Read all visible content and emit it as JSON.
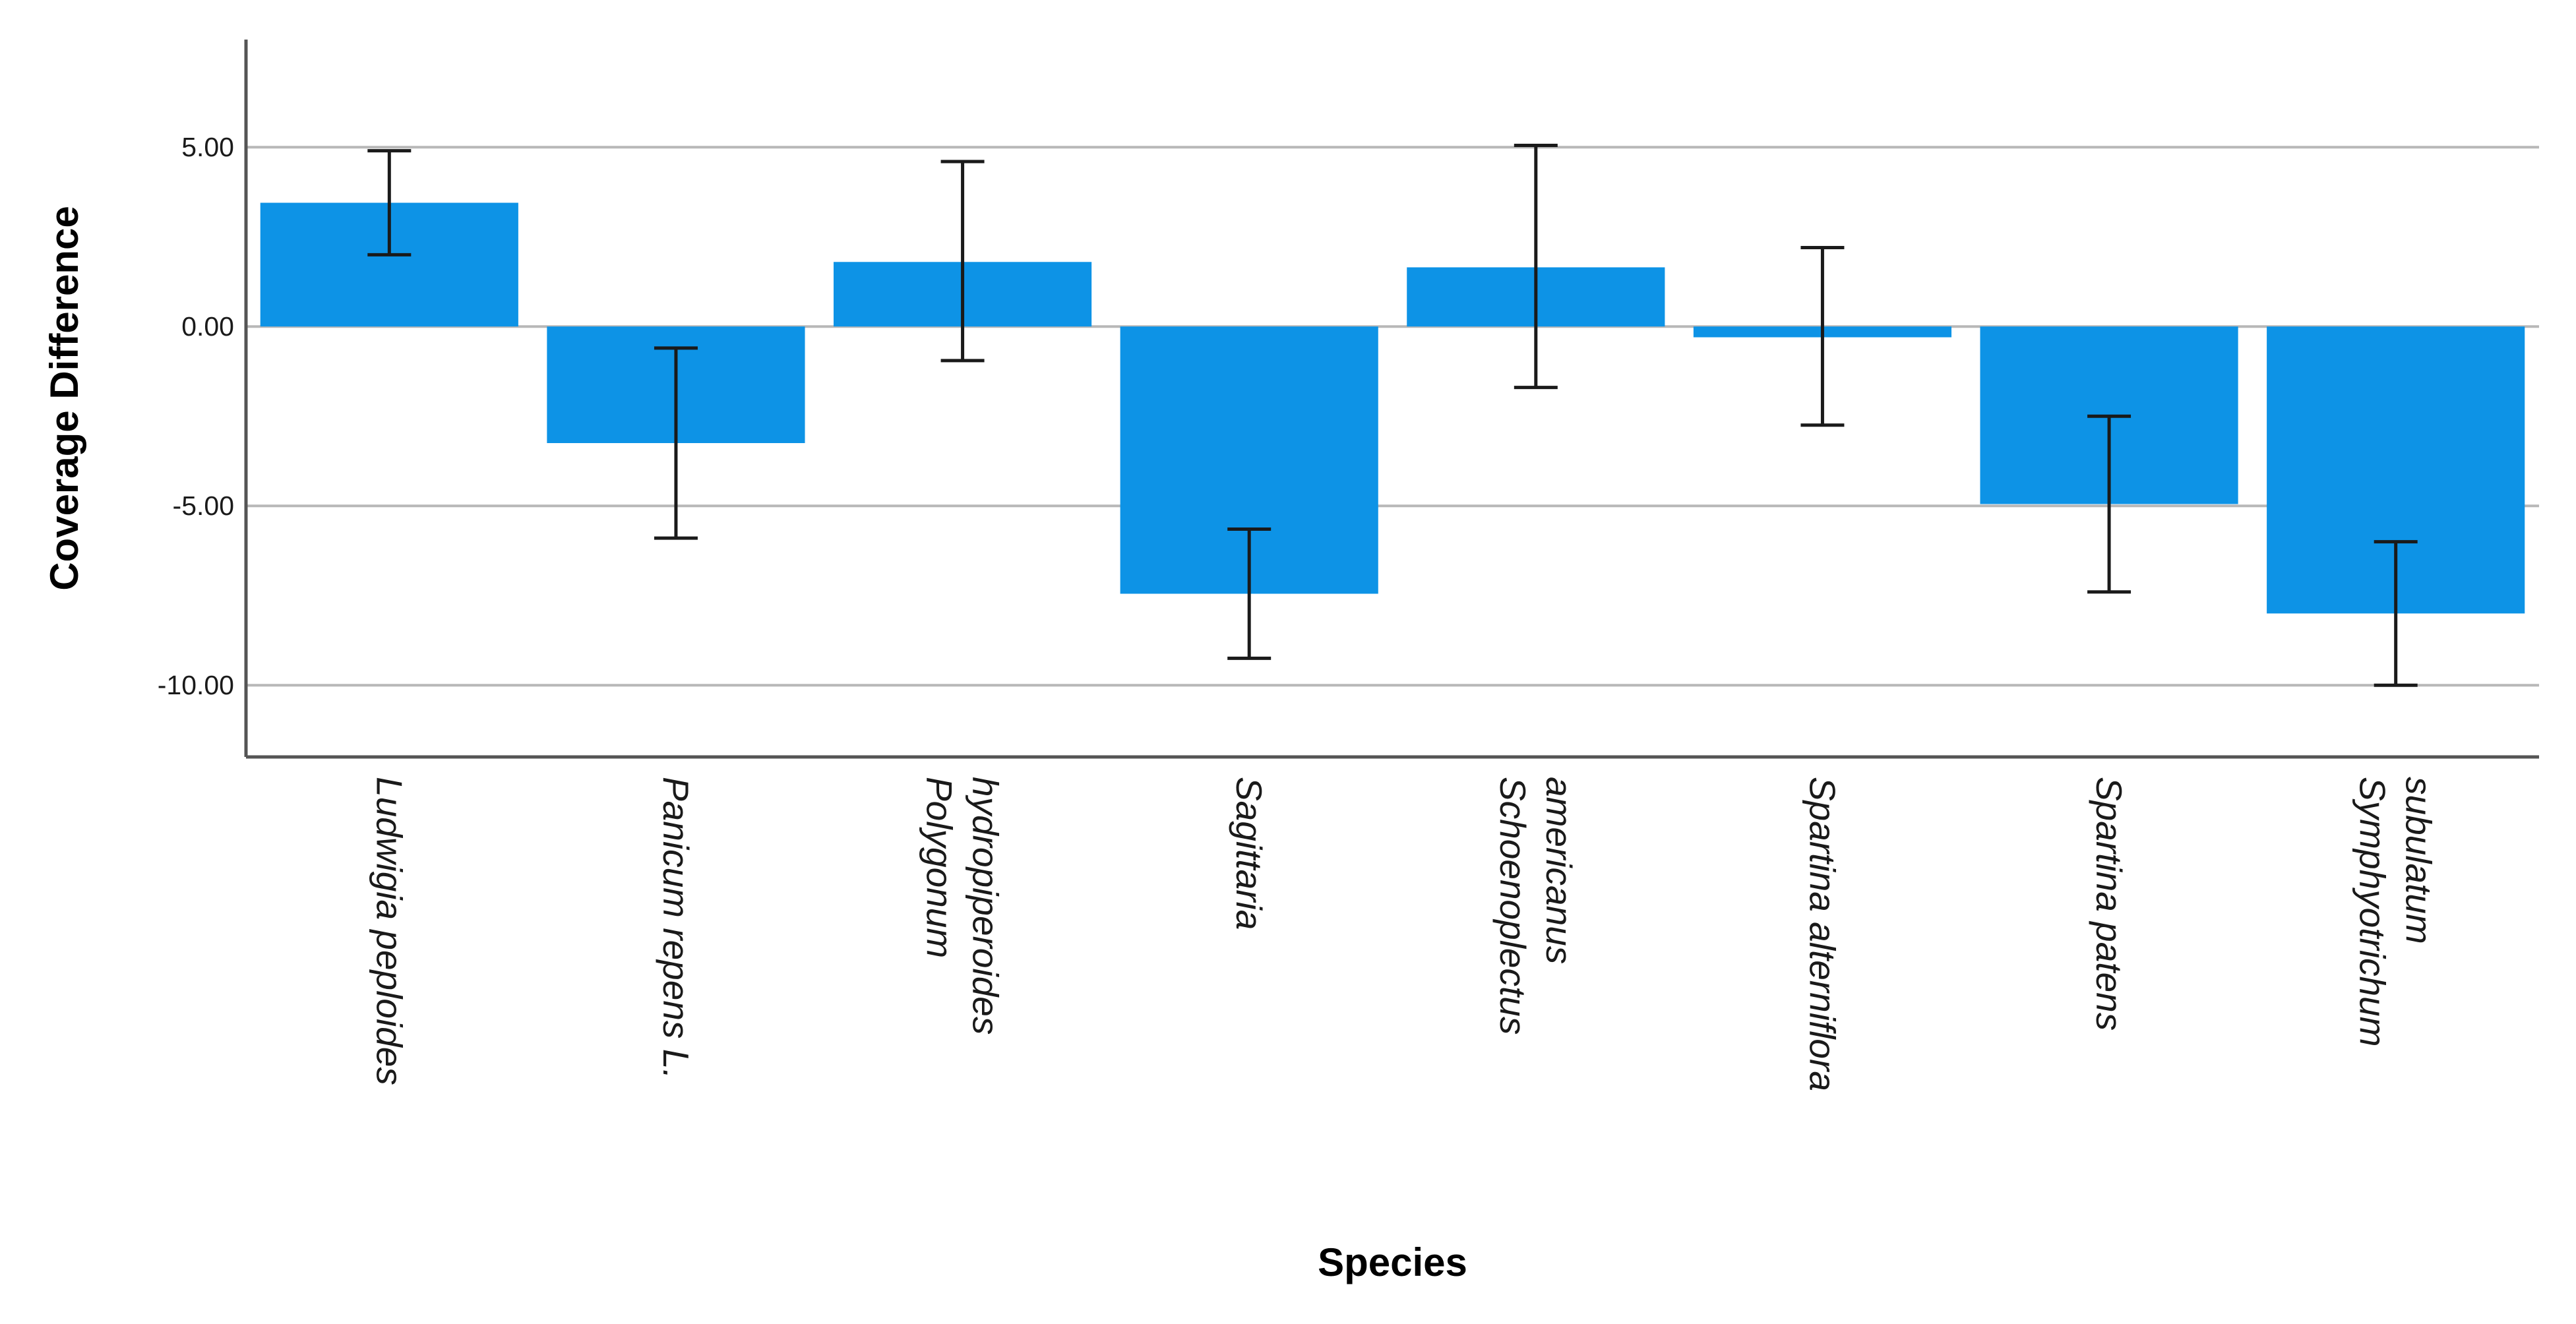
{
  "chart_data": {
    "type": "bar",
    "title": "",
    "xlabel": "Species",
    "ylabel": "Coverage Difference",
    "categories": [
      [
        "Ludwigia peploides"
      ],
      [
        "Panicum repens L."
      ],
      [
        "Polygonum",
        "hydropiperoides"
      ],
      [
        "Sagittaria"
      ],
      [
        "Schoenoplectus",
        "americanus"
      ],
      [
        "Spartina alterniflora"
      ],
      [
        "Spartina patens"
      ],
      [
        "Symphyotrichum",
        "subulatum"
      ]
    ],
    "values": [
      3.45,
      -3.25,
      1.8,
      -7.45,
      1.65,
      -0.3,
      -4.95,
      -8.0
    ],
    "error_low": [
      2.0,
      -5.9,
      -0.95,
      -9.25,
      -1.7,
      -2.75,
      -7.4,
      -10.0
    ],
    "error_high": [
      4.9,
      -0.6,
      4.6,
      -5.65,
      5.05,
      2.2,
      -2.5,
      -6.0
    ],
    "ylim": [
      -12,
      8
    ],
    "yticks": [
      5,
      0,
      -5,
      -10
    ],
    "ytick_labels": [
      "5.00",
      "0.00",
      "-5.00",
      "-10.00"
    ],
    "grid": true,
    "colors": {
      "bar": "#0d93e6",
      "error": "#1a1a1a",
      "grid": "#b8b8b8",
      "axis": "#555555"
    }
  }
}
